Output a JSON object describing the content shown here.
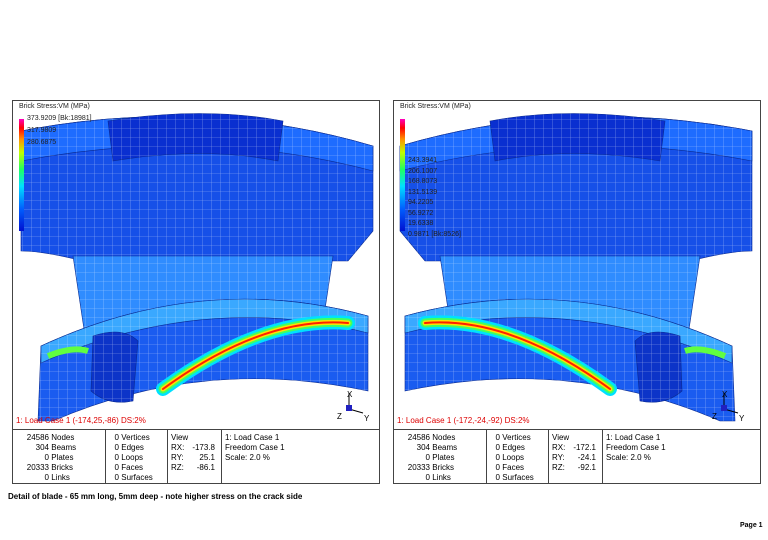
{
  "panels": [
    {
      "legend": {
        "title": "Brick Stress:VM (MPa)",
        "levels": [
          "373.9209 [Bk:18981]",
          "317.9809",
          "280.6875"
        ]
      },
      "status": "1: Load Case 1  (-174,25,-86)  DS:2%",
      "axes": [
        "X",
        "Z",
        "Y"
      ],
      "counts": [
        [
          "24586",
          "Nodes"
        ],
        [
          "304",
          "Beams"
        ],
        [
          "0",
          "Plates"
        ],
        [
          "20333",
          "Bricks"
        ],
        [
          "0",
          "Links"
        ]
      ],
      "geometry": [
        [
          "0",
          "Vertices"
        ],
        [
          "0",
          "Edges"
        ],
        [
          "0",
          "Loops"
        ],
        [
          "0",
          "Faces"
        ],
        [
          "0",
          "Surfaces"
        ]
      ],
      "view": {
        "title": "View",
        "rows": [
          [
            "RX:",
            "-173.8"
          ],
          [
            "RY:",
            "25.1"
          ],
          [
            "RZ:",
            "-86.1"
          ]
        ]
      },
      "cases": [
        "1: Load Case 1",
        "Freedom Case 1",
        "Scale: 2.0 %"
      ]
    },
    {
      "legend": {
        "title": "Brick Stress:VM (MPa)",
        "levels": [
          "243.3941",
          "206.1007",
          "168.8073",
          "131.5139",
          "94.2205",
          "56.9272",
          "19.6338",
          "0.9871 [Bk:8526]"
        ]
      },
      "status": "1: Load Case 1  (-172,-24,-92)  DS:2%",
      "axes": [
        "X",
        "Z",
        "Y"
      ],
      "counts": [
        [
          "24586",
          "Nodes"
        ],
        [
          "304",
          "Beams"
        ],
        [
          "0",
          "Plates"
        ],
        [
          "20333",
          "Bricks"
        ],
        [
          "0",
          "Links"
        ]
      ],
      "geometry": [
        [
          "0",
          "Vertices"
        ],
        [
          "0",
          "Edges"
        ],
        [
          "0",
          "Loops"
        ],
        [
          "0",
          "Faces"
        ],
        [
          "0",
          "Surfaces"
        ]
      ],
      "view": {
        "title": "View",
        "rows": [
          [
            "RX:",
            "-172.1"
          ],
          [
            "RY:",
            "-24.1"
          ],
          [
            "RZ:",
            "-92.1"
          ]
        ]
      },
      "cases": [
        "1: Load Case 1",
        "Freedom Case 1",
        "Scale: 2.0 %"
      ]
    }
  ],
  "caption": "Detail of blade - 65 mm long, 5mm deep - note higher stress on the crack side",
  "footer": "Page 1"
}
